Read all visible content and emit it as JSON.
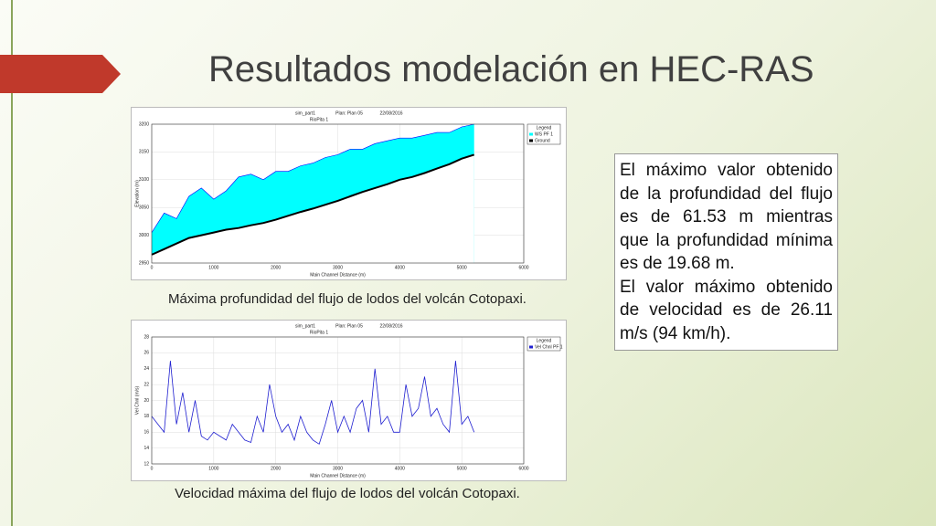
{
  "slide": {
    "title": "Resultados modelación en HEC-RAS",
    "caption_1": "Máxima profundidad del flujo de lodos del volcán Cotopaxi.",
    "caption_2": "Velocidad máxima del flujo de lodos del volcán Cotopaxi.",
    "text_box": [
      "El máximo valor obtenido de la profundidad del flujo es de 61.53 m mientras que la profundidad mínima es de 19.68 m.",
      "El valor máximo obtenido de velocidad es de 26.11 m/s (94 km/h)."
    ]
  },
  "chart_data": [
    {
      "type": "area",
      "title": "sim_part1",
      "plan": "Plan: Plan 05",
      "date": "22/08/2016",
      "subtitle": "RioPita 1",
      "x_label": "Main Channel Distance (m)",
      "y_label": "Elevation (m)",
      "legend_title": "Legend",
      "x": [
        0,
        200,
        400,
        600,
        800,
        1000,
        1200,
        1400,
        1600,
        1800,
        2000,
        2200,
        2400,
        2600,
        2800,
        3000,
        3200,
        3400,
        3600,
        3800,
        4000,
        4200,
        4400,
        4600,
        4800,
        5000,
        5200
      ],
      "series": [
        {
          "name": "WS PF 1",
          "color": "#00ffff",
          "values": [
            3005,
            3040,
            3030,
            3070,
            3085,
            3065,
            3080,
            3105,
            3110,
            3100,
            3115,
            3115,
            3125,
            3130,
            3140,
            3145,
            3155,
            3155,
            3165,
            3170,
            3175,
            3175,
            3180,
            3185,
            3185,
            3195,
            3200
          ]
        },
        {
          "name": "Ground",
          "color": "#000000",
          "values": [
            2965,
            2975,
            2985,
            2995,
            3000,
            3005,
            3010,
            3013,
            3018,
            3022,
            3028,
            3035,
            3042,
            3048,
            3055,
            3062,
            3070,
            3078,
            3085,
            3092,
            3100,
            3105,
            3112,
            3120,
            3128,
            3138,
            3145
          ]
        }
      ],
      "xlim": [
        0,
        6000
      ],
      "xticks": [
        0,
        1000,
        2000,
        3000,
        4000,
        5000,
        6000
      ],
      "ylim": [
        2950,
        3200
      ],
      "yticks": [
        2950,
        3000,
        3050,
        3100,
        3150,
        3200
      ],
      "grid": true,
      "legend": "right"
    },
    {
      "type": "line",
      "title": "sim_part1",
      "plan": "Plan: Plan 05",
      "date": "22/08/2016",
      "subtitle": "RioPita 1",
      "x_label": "Main Channel Distance (m)",
      "y_label": "Vel Chnl (m/s)",
      "legend_title": "Legend",
      "x": [
        0,
        100,
        200,
        300,
        400,
        500,
        600,
        700,
        800,
        900,
        1000,
        1100,
        1200,
        1300,
        1400,
        1500,
        1600,
        1700,
        1800,
        1900,
        2000,
        2100,
        2200,
        2300,
        2400,
        2500,
        2600,
        2700,
        2800,
        2900,
        3000,
        3100,
        3200,
        3300,
        3400,
        3500,
        3600,
        3700,
        3800,
        3900,
        4000,
        4100,
        4200,
        4300,
        4400,
        4500,
        4600,
        4700,
        4800,
        4900,
        5000,
        5100,
        5200
      ],
      "series": [
        {
          "name": "Vel Chnl PF 1",
          "color": "#1f1fd0",
          "values": [
            18,
            17,
            16,
            25,
            17,
            21,
            16,
            20,
            15.5,
            15,
            16,
            15.5,
            15,
            17,
            16,
            15,
            14.7,
            18,
            16,
            22,
            18,
            16,
            17,
            15,
            18,
            16,
            15,
            14.5,
            17,
            20,
            16,
            18,
            16,
            19,
            20,
            16,
            24,
            17,
            18,
            16,
            16,
            22,
            18,
            19,
            23,
            18,
            19,
            17,
            16,
            25,
            17,
            18,
            16
          ]
        }
      ],
      "xlim": [
        0,
        6000
      ],
      "xticks": [
        0,
        1000,
        2000,
        3000,
        4000,
        5000,
        6000
      ],
      "ylim": [
        12,
        28
      ],
      "yticks": [
        12,
        14,
        16,
        18,
        20,
        22,
        24,
        26,
        28
      ],
      "grid": true,
      "legend": "right"
    }
  ]
}
